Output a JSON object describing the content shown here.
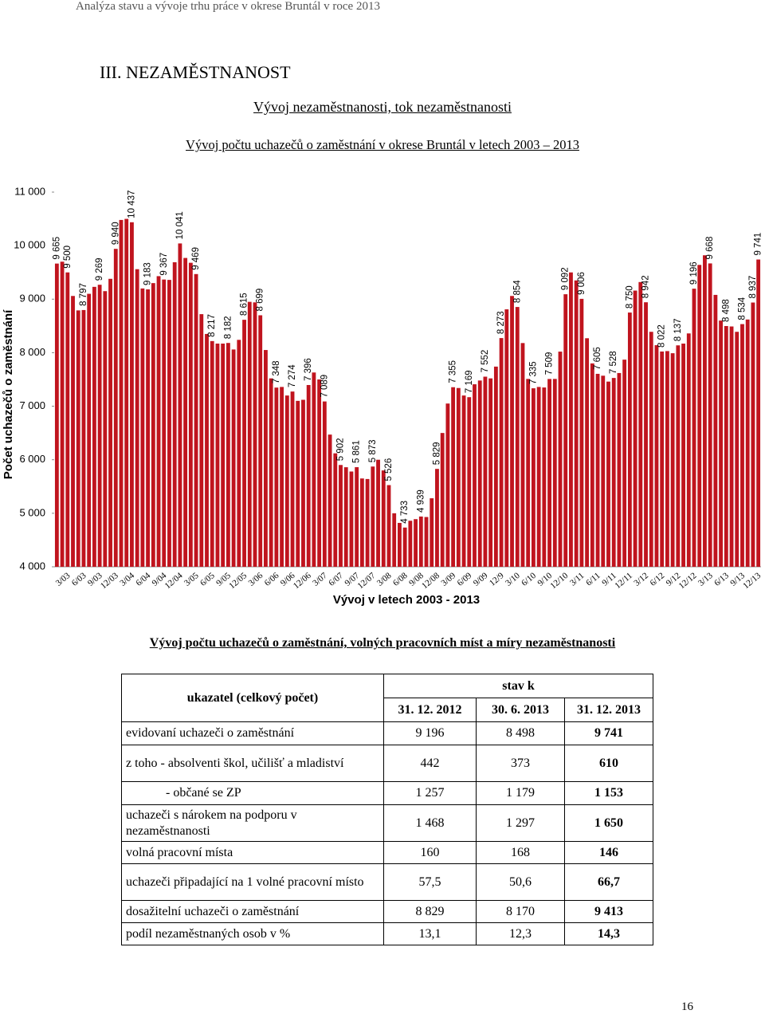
{
  "header": "Analýza stavu a vývoje trhu práce v okrese Bruntál v roce 2013",
  "section_title": "III. NEZAMĚSTNANOST",
  "subtitle": "Vývoj nezaměstnanosti, tok nezaměstnanosti",
  "chart_data": {
    "type": "bar",
    "title": "Vývoj počtu uchazečů o zaměstnání v okrese Bruntál v letech 2003 – 2013",
    "y_label": "Počet uchazečů o zaměstnání",
    "x_label": "Vývoj v letech 2003 - 2013",
    "color": "#c0141e",
    "grid": false,
    "ylim": [
      4000,
      11000
    ],
    "yticks": [
      {
        "value": 4000,
        "label": "4 000"
      },
      {
        "value": 5000,
        "label": "5 000"
      },
      {
        "value": 6000,
        "label": "6 000"
      },
      {
        "value": 7000,
        "label": "7 000"
      },
      {
        "value": 8000,
        "label": "8 000"
      },
      {
        "value": 9000,
        "label": "9 000"
      },
      {
        "value": 10000,
        "label": "10 000"
      },
      {
        "value": 11000,
        "label": "11 000"
      }
    ],
    "categories": [
      null,
      null,
      "3/03",
      null,
      null,
      "6/03",
      null,
      null,
      "9/03",
      null,
      null,
      "12/03",
      null,
      null,
      "3/04",
      null,
      null,
      "6/04",
      null,
      null,
      "9/04",
      null,
      null,
      "12/04",
      null,
      null,
      "3/05",
      null,
      null,
      "6/05",
      null,
      null,
      "9/05",
      null,
      null,
      "12/05",
      null,
      null,
      "3/06",
      null,
      null,
      "6/06",
      null,
      null,
      "9/06",
      null,
      null,
      "12/06",
      null,
      null,
      "3/07",
      null,
      null,
      "6/07",
      null,
      null,
      "9/07",
      null,
      null,
      "12/07",
      null,
      null,
      "3/08",
      null,
      null,
      "6/08",
      null,
      null,
      "9/08",
      null,
      null,
      "12/08",
      null,
      null,
      "3/09",
      null,
      null,
      "6/09",
      null,
      null,
      "9/09",
      null,
      null,
      "12/9",
      null,
      null,
      "3/10",
      null,
      null,
      "6/10",
      null,
      null,
      "9/10",
      null,
      null,
      "12/10",
      null,
      null,
      "3/11",
      null,
      null,
      "6/11",
      null,
      null,
      "9/11",
      null,
      null,
      "12/11",
      null,
      null,
      "3/12",
      null,
      null,
      "6/12",
      null,
      null,
      "9/12",
      null,
      null,
      "12/12",
      null,
      null,
      "3/13",
      null,
      null,
      "6/13",
      null,
      null,
      "9/13",
      null,
      null,
      "12/13"
    ],
    "values": [
      9665,
      9700,
      9500,
      9060,
      8790,
      8797,
      9100,
      9230,
      9269,
      9150,
      9380,
      9940,
      10480,
      10500,
      10437,
      9560,
      9200,
      9183,
      9300,
      9430,
      9367,
      9360,
      9690,
      10041,
      9770,
      9680,
      9469,
      8720,
      8350,
      8217,
      8170,
      8170,
      8182,
      8060,
      8240,
      8615,
      8950,
      8940,
      8699,
      8050,
      7520,
      7348,
      7360,
      7200,
      7274,
      7100,
      7120,
      7396,
      7630,
      7500,
      7089,
      6470,
      6120,
      5902,
      5860,
      5780,
      5861,
      5650,
      5640,
      5873,
      6000,
      5800,
      5526,
      5000,
      4820,
      4733,
      4860,
      4890,
      4939,
      4930,
      5280,
      5829,
      6500,
      7050,
      7355,
      7340,
      7200,
      7169,
      7410,
      7480,
      7552,
      7520,
      7740,
      8273,
      8810,
      9060,
      8854,
      8180,
      7510,
      7335,
      7360,
      7350,
      7509,
      7510,
      8020,
      9092,
      9500,
      9350,
      9006,
      8270,
      7800,
      7605,
      7570,
      7460,
      7528,
      7620,
      7870,
      8750,
      9160,
      9320,
      8942,
      8390,
      8140,
      8022,
      8030,
      7990,
      8137,
      8170,
      8360,
      9196,
      9640,
      9820,
      9668,
      9080,
      8600,
      8498,
      8490,
      8390,
      8534,
      8620,
      8937,
      9741
    ],
    "value_labels": [
      "9 665",
      null,
      "9 500",
      null,
      null,
      "8 797",
      null,
      null,
      "9 269",
      null,
      null,
      "9 940",
      null,
      null,
      "10 437",
      null,
      null,
      "9 183",
      null,
      null,
      "9 367",
      null,
      null,
      "10 041",
      null,
      null,
      "9 469",
      null,
      null,
      "8 217",
      null,
      null,
      "8 182",
      null,
      null,
      "8 615",
      null,
      null,
      "8 699",
      null,
      null,
      "7 348",
      null,
      null,
      "7 274",
      null,
      null,
      "7 396",
      null,
      null,
      "7 089",
      null,
      null,
      "5 902",
      null,
      null,
      "5 861",
      null,
      null,
      "5 873",
      null,
      null,
      "5 526",
      null,
      null,
      "4 733",
      null,
      null,
      "4 939",
      null,
      null,
      "5 829",
      null,
      null,
      "7 355",
      null,
      null,
      "7 169",
      null,
      null,
      "7 552",
      null,
      null,
      "8 273",
      null,
      null,
      "8 854",
      null,
      null,
      "7 335",
      null,
      null,
      "7 509",
      null,
      null,
      "9 092",
      null,
      null,
      "9 006",
      null,
      null,
      "7 605",
      null,
      null,
      "7 528",
      null,
      null,
      "8 750",
      null,
      null,
      "8 942",
      null,
      null,
      "8 022",
      null,
      null,
      "8 137",
      null,
      null,
      "9 196",
      null,
      null,
      "9 668",
      null,
      null,
      "8 498",
      null,
      null,
      "8 534",
      null,
      "8 937",
      "9 741"
    ]
  },
  "table": {
    "title": "Vývoj počtu uchazečů o zaměstnání, volných pracovních míst a míry nezaměstnanosti",
    "header": "ukazatel (celkový počet)",
    "group_header": "stav k",
    "columns": [
      "31. 12. 2012",
      "30. 6. 2013",
      "31. 12. 2013"
    ],
    "rows": [
      [
        "evidovaní uchazeči o zaměstnání",
        "9 196",
        "8 498",
        "9 741"
      ],
      [
        "z toho - absolventi škol, učilišť a mladiství",
        "442",
        "373",
        "610"
      ],
      [
        "- občané se ZP",
        "1 257",
        "1 179",
        "1 153"
      ],
      [
        "uchazeči s nárokem na podporu v nezaměstnanosti",
        "1 468",
        "1 297",
        "1 650"
      ],
      [
        "volná pracovní místa",
        "160",
        "168",
        "146"
      ],
      [
        "uchazeči připadající na 1 volné pracovní místo",
        "57,5",
        "50,6",
        "66,7"
      ],
      [
        "dosažitelní uchazeči o zaměstnání",
        "8 829",
        "8 170",
        "9 413"
      ],
      [
        "podíl nezaměstnaných osob v %",
        "13,1",
        "12,3",
        "14,3"
      ]
    ]
  },
  "page_number": "16"
}
